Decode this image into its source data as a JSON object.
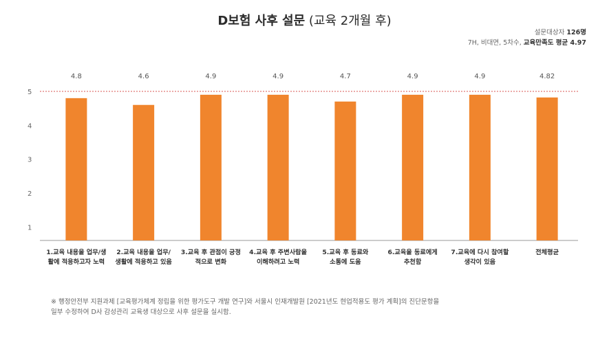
{
  "header": {
    "title_bold": "D보험 사후 설문",
    "title_rest": " (교육 2개월 후)"
  },
  "meta": {
    "line1_prefix": "설문대상자 ",
    "line1_count": "126명",
    "line2_prefix": "7H, 비대면, 5차수, ",
    "line2_bold": "교육만족도 평균 4.97"
  },
  "footnote": {
    "line1": "※ 행정안전부 지원과제 [교육평가체계 정립을 위한 평가도구 개발 연구]와 서울시 인재개발원 [2021년도 현업적용도 평가 계획]의 진단문항을",
    "line2": "일부 수정하여 D사 감성관리 교육생 대상으로 사후 설문을 실시함."
  },
  "chart_data": {
    "type": "bar",
    "categories": [
      [
        "1.교육 내용을 업무/생",
        "활에 적용하고자 노력"
      ],
      [
        "2.교육 내용을 업무/",
        "생활에 적용하고 있음"
      ],
      [
        "3.교육 후 관점이 긍정",
        "적으로 변화"
      ],
      [
        "4.교육 후 주변사람을",
        "이해하려고 노력"
      ],
      [
        "5.교육 후 동료와",
        "소통에 도움"
      ],
      [
        "6.교육을 동료에게",
        "추천함"
      ],
      [
        "7.교육에 다시 참여할",
        "생각이 있음"
      ],
      [
        "전체평균"
      ]
    ],
    "values": [
      4.8,
      4.6,
      4.9,
      4.9,
      4.7,
      4.9,
      4.9,
      4.82
    ],
    "value_labels": [
      "4.8",
      "4.6",
      "4.9",
      "4.9",
      "4.7",
      "4.9",
      "4.9",
      "4.82"
    ],
    "yticks": [
      1,
      2,
      3,
      4,
      5
    ],
    "ylim": [
      0,
      5.4
    ],
    "reference_line": 5,
    "bar_color": "#f0852d",
    "reference_color": "#d9534f",
    "axis_color": "#999999",
    "grid": false,
    "legend": "none"
  }
}
